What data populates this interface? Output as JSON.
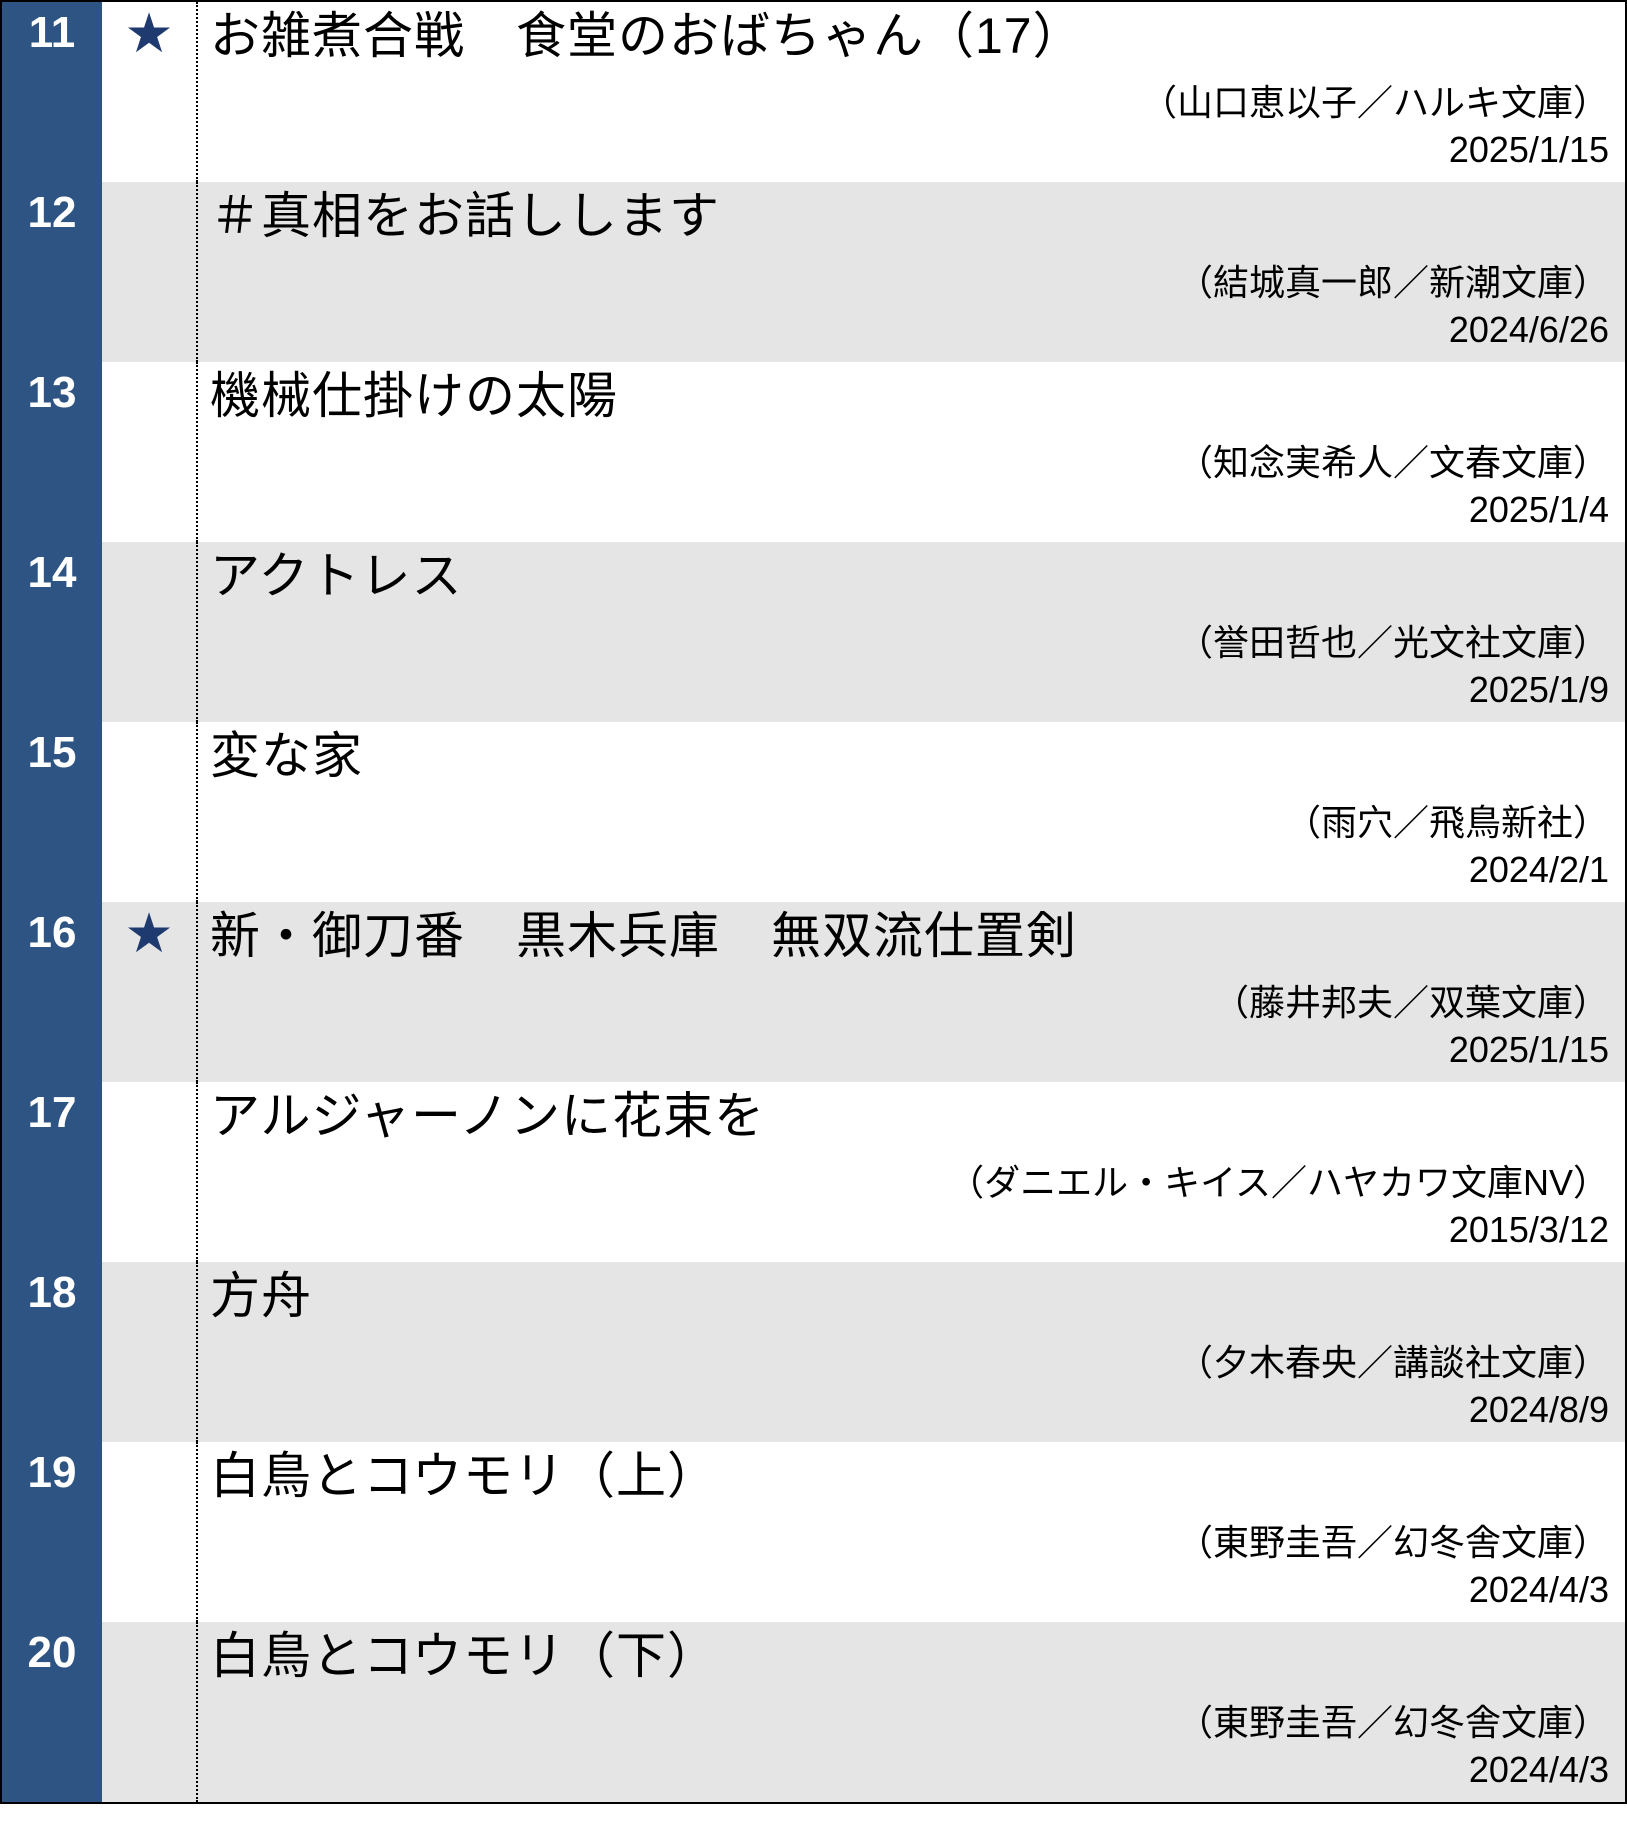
{
  "colors": {
    "rank_bg": "#2d5482",
    "rank_text": "#ffffff",
    "star_color": "#1f3a6e",
    "row_odd_bg": "#ffffff",
    "row_even_bg": "#e5e5e5",
    "border": "#000000",
    "text": "#000000"
  },
  "typography": {
    "rank_fontsize": 44,
    "title_fontsize": 50,
    "meta_fontsize": 36,
    "star_fontsize": 55
  },
  "layout": {
    "rank_col_width": 100,
    "star_col_width": 96,
    "row_min_height": 180,
    "total_width": 1627
  },
  "rows": [
    {
      "rank": "11",
      "starred": true,
      "title": "お雑煮合戦　食堂のおばちゃん（17）",
      "meta": "（山口恵以子／ハルキ文庫）",
      "date": "2025/1/15"
    },
    {
      "rank": "12",
      "starred": false,
      "title": "＃真相をお話しします",
      "meta": "（結城真一郎／新潮文庫）",
      "date": "2024/6/26"
    },
    {
      "rank": "13",
      "starred": false,
      "title": "機械仕掛けの太陽",
      "meta": "（知念実希人／文春文庫）",
      "date": "2025/1/4"
    },
    {
      "rank": "14",
      "starred": false,
      "title": "アクトレス",
      "meta": "（誉田哲也／光文社文庫）",
      "date": "2025/1/9"
    },
    {
      "rank": "15",
      "starred": false,
      "title": "変な家",
      "meta": "（雨穴／飛鳥新社）",
      "date": "2024/2/1"
    },
    {
      "rank": "16",
      "starred": true,
      "title": "新・御刀番　黒木兵庫　無双流仕置剣",
      "meta": "（藤井邦夫／双葉文庫）",
      "date": "2025/1/15"
    },
    {
      "rank": "17",
      "starred": false,
      "title": "アルジャーノンに花束を",
      "meta": "（ダニエル・キイス／ハヤカワ文庫NV）",
      "date": "2015/3/12"
    },
    {
      "rank": "18",
      "starred": false,
      "title": "方舟",
      "meta": "（夕木春央／講談社文庫）",
      "date": "2024/8/9"
    },
    {
      "rank": "19",
      "starred": false,
      "title": "白鳥とコウモリ（上）",
      "meta": "（東野圭吾／幻冬舎文庫）",
      "date": "2024/4/3"
    },
    {
      "rank": "20",
      "starred": false,
      "title": "白鳥とコウモリ（下）",
      "meta": "（東野圭吾／幻冬舎文庫）",
      "date": "2024/4/3"
    }
  ]
}
